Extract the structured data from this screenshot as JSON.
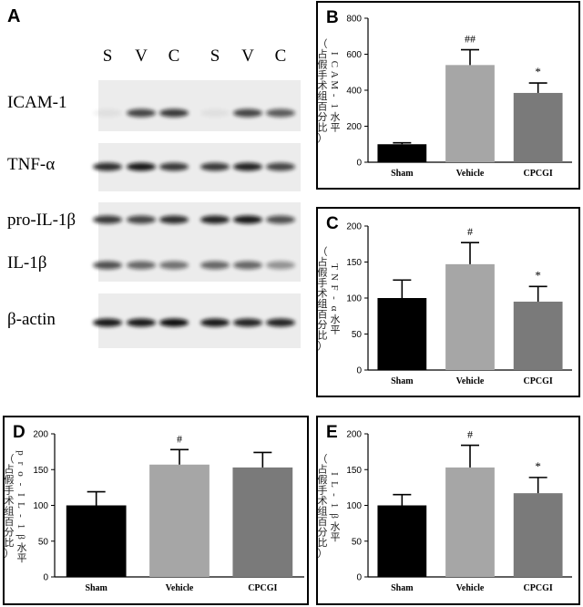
{
  "panel_a": {
    "letter": "A",
    "lanes": [
      "S",
      "V",
      "C",
      "S",
      "V",
      "C"
    ],
    "rows": [
      {
        "label": "ICAM-1",
        "intensity": [
          0.05,
          0.75,
          0.8,
          0.05,
          0.75,
          0.65
        ]
      },
      {
        "label": "TNF-α",
        "intensity": [
          0.85,
          0.95,
          0.8,
          0.8,
          0.9,
          0.75
        ]
      },
      {
        "label": "pro-IL-1β",
        "intensity": [
          0.8,
          0.75,
          0.85,
          0.9,
          0.95,
          0.7
        ]
      },
      {
        "label": "IL-1β",
        "intensity": [
          0.7,
          0.6,
          0.55,
          0.6,
          0.6,
          0.4
        ]
      },
      {
        "label": "β-actin",
        "intensity": [
          0.95,
          0.95,
          1.0,
          0.95,
          0.9,
          0.9
        ]
      }
    ]
  },
  "chart_data": [
    {
      "panel": "B",
      "type": "bar",
      "categories": [
        "Sham",
        "Vehicle",
        "CPCGI"
      ],
      "values": [
        100,
        540,
        385
      ],
      "errors": [
        8,
        85,
        55
      ],
      "ylabel": "ICAM-1水平\n（占假手术组百分比）",
      "ylim": [
        0,
        800
      ],
      "yticks": [
        0,
        200,
        400,
        600,
        800
      ],
      "annotations": [
        "",
        "##",
        "*"
      ],
      "colors": [
        "#000000",
        "#a6a6a6",
        "#7a7a7a"
      ]
    },
    {
      "panel": "C",
      "type": "bar",
      "categories": [
        "Sham",
        "Vehicle",
        "CPCGI"
      ],
      "values": [
        100,
        147,
        95
      ],
      "errors": [
        25,
        30,
        21
      ],
      "ylabel": "TNF-α水平\n（占假手术组百分比）",
      "ylim": [
        0,
        200
      ],
      "yticks": [
        0,
        50,
        100,
        150,
        200
      ],
      "annotations": [
        "",
        "#",
        "*"
      ],
      "colors": [
        "#000000",
        "#a6a6a6",
        "#7a7a7a"
      ]
    },
    {
      "panel": "D",
      "type": "bar",
      "categories": [
        "Sham",
        "Vehicle",
        "CPCGI"
      ],
      "values": [
        100,
        157,
        153
      ],
      "errors": [
        19,
        21,
        21
      ],
      "ylabel": "pro-IL-1β水平\n（占假手术组百分比）",
      "ylim": [
        0,
        200
      ],
      "yticks": [
        0,
        50,
        100,
        150,
        200
      ],
      "annotations": [
        "",
        "#",
        ""
      ],
      "colors": [
        "#000000",
        "#a6a6a6",
        "#7a7a7a"
      ]
    },
    {
      "panel": "E",
      "type": "bar",
      "categories": [
        "Sham",
        "Vehicle",
        "CPCGI"
      ],
      "values": [
        100,
        153,
        117
      ],
      "errors": [
        15,
        31,
        22
      ],
      "ylabel": "IL-1β水平\n（占假手术组百分比）",
      "ylim": [
        0,
        200
      ],
      "yticks": [
        0,
        50,
        100,
        150,
        200
      ],
      "annotations": [
        "",
        "#",
        "*"
      ],
      "colors": [
        "#000000",
        "#a6a6a6",
        "#7a7a7a"
      ]
    }
  ]
}
